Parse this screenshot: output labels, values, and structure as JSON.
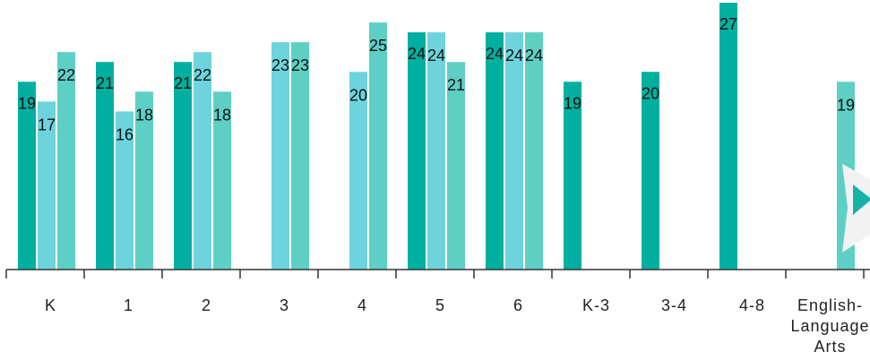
{
  "colors": {
    "series_1": "#00afa0",
    "series_2": "#6dd3dc",
    "series_3": "#5ecfc4",
    "axis": "#333333",
    "next_arrow": "#14b3a6"
  },
  "icons": {
    "next": "play-arrow-icon"
  },
  "chart_data": {
    "type": "bar",
    "title": "",
    "xlabel": "",
    "ylabel": "",
    "ylim": [
      0,
      27
    ],
    "grid": false,
    "categories": [
      "K",
      "1",
      "2",
      "3",
      "4",
      "5",
      "6",
      "K-3",
      "3-4",
      "4-8",
      "English-Language Arts"
    ],
    "category_lines": [
      [
        "K"
      ],
      [
        "1"
      ],
      [
        "2"
      ],
      [
        "3"
      ],
      [
        "4"
      ],
      [
        "5"
      ],
      [
        "6"
      ],
      [
        "K-3"
      ],
      [
        "3-4"
      ],
      [
        "4-8"
      ],
      [
        "English-",
        "Language",
        "Arts"
      ]
    ],
    "series": [
      {
        "values": [
          19,
          21,
          21,
          null,
          null,
          24,
          24,
          19,
          20,
          27,
          null
        ]
      },
      {
        "values": [
          17,
          16,
          22,
          23,
          20,
          24,
          24,
          null,
          null,
          null,
          null
        ]
      },
      {
        "values": [
          22,
          18,
          18,
          23,
          25,
          21,
          24,
          null,
          null,
          null,
          19
        ]
      }
    ]
  }
}
